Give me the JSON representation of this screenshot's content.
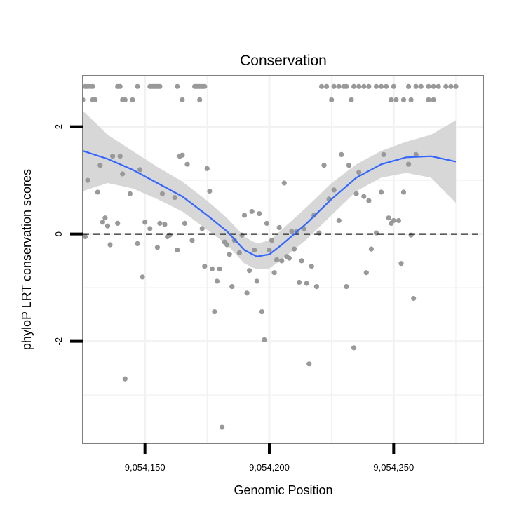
{
  "chart_data": {
    "type": "scatter",
    "title": "Conservation",
    "xlabel": "Genomic Position",
    "ylabel": "phyloP LRT conservation scores",
    "xlim": [
      9054125,
      9054286
    ],
    "ylim": [
      -3.9,
      2.95
    ],
    "x_ticks": [
      9054150,
      9054200,
      9054250
    ],
    "x_tick_labels": [
      "9,054,150",
      "9,054,200",
      "9,054,250"
    ],
    "y_ticks": [
      -2,
      0,
      2
    ],
    "y_tick_labels": [
      "-2",
      "0",
      "2"
    ],
    "x_minor_grid": [
      9054125,
      9054175,
      9054225,
      9054275
    ],
    "y_minor_grid": [
      -3,
      -1,
      1
    ],
    "reference_line_y": 0,
    "grid": true,
    "colors": {
      "points": "#999999",
      "smooth": "#3366FF",
      "band": "#D3D3D3",
      "panel_border": "#7F7F7F",
      "grid": "#F2F2F2"
    },
    "points": [
      [
        9054126,
        2.75
      ],
      [
        9054127,
        2.75
      ],
      [
        9054128,
        2.75
      ],
      [
        9054129,
        2.75
      ],
      [
        9054125,
        2.5
      ],
      [
        9054129,
        2.5
      ],
      [
        9054130,
        2.5
      ],
      [
        9054152,
        2.75
      ],
      [
        9054153,
        2.75
      ],
      [
        9054154,
        2.75
      ],
      [
        9054155,
        2.75
      ],
      [
        9054156,
        2.75
      ],
      [
        9054163,
        2.75
      ],
      [
        9054170,
        2.75
      ],
      [
        9054171,
        2.75
      ],
      [
        9054172,
        2.75
      ],
      [
        9054173,
        2.75
      ],
      [
        9054174,
        2.75
      ],
      [
        9054139,
        2.75
      ],
      [
        9054140,
        2.75
      ],
      [
        9054141,
        2.5
      ],
      [
        9054142,
        2.5
      ],
      [
        9054145,
        2.5
      ],
      [
        9054165,
        2.5
      ],
      [
        9054172,
        2.5
      ],
      [
        9054147,
        2.75
      ],
      [
        9054221,
        2.75
      ],
      [
        9054223,
        2.75
      ],
      [
        9054226,
        2.75
      ],
      [
        9054228,
        2.75
      ],
      [
        9054230,
        2.75
      ],
      [
        9054231,
        2.75
      ],
      [
        9054234,
        2.75
      ],
      [
        9054236,
        2.75
      ],
      [
        9054238,
        2.75
      ],
      [
        9054240,
        2.75
      ],
      [
        9054243,
        2.75
      ],
      [
        9054245,
        2.75
      ],
      [
        9054247,
        2.75
      ],
      [
        9054250,
        2.75
      ],
      [
        9054256,
        2.75
      ],
      [
        9054259,
        2.75
      ],
      [
        9054261,
        2.75
      ],
      [
        9054264,
        2.75
      ],
      [
        9054266,
        2.75
      ],
      [
        9054268,
        2.75
      ],
      [
        9054271,
        2.75
      ],
      [
        9054273,
        2.75
      ],
      [
        9054275,
        2.75
      ],
      [
        9054225,
        2.5
      ],
      [
        9054233,
        2.5
      ],
      [
        9054249,
        2.5
      ],
      [
        9054251,
        2.5
      ],
      [
        9054254,
        2.5
      ],
      [
        9054257,
        2.5
      ],
      [
        9054264,
        2.5
      ],
      [
        9054266,
        2.5
      ],
      [
        9054126,
        -0.05
      ],
      [
        9054127,
        1.0
      ],
      [
        9054131,
        0.78
      ],
      [
        9054132,
        1.28
      ],
      [
        9054133,
        0.22
      ],
      [
        9054134,
        0.3
      ],
      [
        9054135,
        0.15
      ],
      [
        9054136,
        -0.2
      ],
      [
        9054137,
        1.45
      ],
      [
        9054139,
        0.2
      ],
      [
        9054140,
        1.45
      ],
      [
        9054141,
        1.12
      ],
      [
        9054142,
        -2.7
      ],
      [
        9054144,
        0.75
      ],
      [
        9054147,
        -0.18
      ],
      [
        9054148,
        1.2
      ],
      [
        9054149,
        -0.8
      ],
      [
        9054150,
        0.22
      ],
      [
        9054152,
        0.1
      ],
      [
        9054155,
        -0.25
      ],
      [
        9054156,
        0.2
      ],
      [
        9054157,
        0.75
      ],
      [
        9054158,
        0.18
      ],
      [
        9054159,
        -0.05
      ],
      [
        9054160,
        -0.02
      ],
      [
        9054162,
        0.68
      ],
      [
        9054163,
        -0.3
      ],
      [
        9054164,
        1.45
      ],
      [
        9054165,
        1.47
      ],
      [
        9054166,
        0.2
      ],
      [
        9054167,
        1.3
      ],
      [
        9054169,
        -0.12
      ],
      [
        9054173,
        0.1
      ],
      [
        9054174,
        -0.6
      ],
      [
        9054175,
        1.22
      ],
      [
        9054176,
        0.8
      ],
      [
        9054177,
        -0.65
      ],
      [
        9054178,
        -1.45
      ],
      [
        9054179,
        -0.88
      ],
      [
        9054180,
        -0.65
      ],
      [
        9054181,
        -3.6
      ],
      [
        9054182,
        -0.15
      ],
      [
        9054183,
        -0.2
      ],
      [
        9054184,
        -0.38
      ],
      [
        9054185,
        -0.98
      ],
      [
        9054186,
        -0.12
      ],
      [
        9054188,
        -0.35
      ],
      [
        9054189,
        -0.02
      ],
      [
        9054190,
        0.35
      ],
      [
        9054191,
        -1.1
      ],
      [
        9054192,
        -0.68
      ],
      [
        9054193,
        0.42
      ],
      [
        9054194,
        -0.3
      ],
      [
        9054195,
        -0.88
      ],
      [
        9054196,
        0.38
      ],
      [
        9054197,
        -1.45
      ],
      [
        9054198,
        -1.97
      ],
      [
        9054199,
        0.2
      ],
      [
        9054200,
        -0.3
      ],
      [
        9054201,
        -0.12
      ],
      [
        9054202,
        -0.72
      ],
      [
        9054203,
        -0.48
      ],
      [
        9054204,
        0.12
      ],
      [
        9054205,
        -0.5
      ],
      [
        9054206,
        0.95
      ],
      [
        9054207,
        -0.42
      ],
      [
        9054208,
        -0.45
      ],
      [
        9054209,
        0.05
      ],
      [
        9054210,
        -0.28
      ],
      [
        9054211,
        0.05
      ],
      [
        9054212,
        -0.9
      ],
      [
        9054213,
        -0.5
      ],
      [
        9054214,
        0.1
      ],
      [
        9054215,
        -0.92
      ],
      [
        9054216,
        -2.42
      ],
      [
        9054217,
        -0.6
      ],
      [
        9054218,
        0.35
      ],
      [
        9054219,
        -0.98
      ],
      [
        9054220,
        0.02
      ],
      [
        9054222,
        1.28
      ],
      [
        9054224,
        0.65
      ],
      [
        9054226,
        0.82
      ],
      [
        9054228,
        0.25
      ],
      [
        9054229,
        1.48
      ],
      [
        9054231,
        -0.98
      ],
      [
        9054232,
        1.28
      ],
      [
        9054234,
        -2.12
      ],
      [
        9054235,
        0.75
      ],
      [
        9054236,
        1.15
      ],
      [
        9054238,
        0.7
      ],
      [
        9054239,
        -0.72
      ],
      [
        9054240,
        0.62
      ],
      [
        9054241,
        -0.28
      ],
      [
        9054243,
        0.02
      ],
      [
        9054245,
        0.78
      ],
      [
        9054246,
        1.48
      ],
      [
        9054248,
        0.3
      ],
      [
        9054249,
        0.2
      ],
      [
        9054250,
        0.25
      ],
      [
        9054252,
        0.25
      ],
      [
        9054253,
        -0.55
      ],
      [
        9054254,
        0.78
      ],
      [
        9054256,
        1.3
      ],
      [
        9054257,
        -0.02
      ],
      [
        9054258,
        -1.2
      ],
      [
        9054259,
        1.48
      ]
    ],
    "smooth": [
      [
        9054125,
        1.55
      ],
      [
        9054135,
        1.4
      ],
      [
        9054145,
        1.2
      ],
      [
        9054155,
        0.95
      ],
      [
        9054165,
        0.7
      ],
      [
        9054175,
        0.35
      ],
      [
        9054183,
        0.05
      ],
      [
        9054190,
        -0.3
      ],
      [
        9054195,
        -0.42
      ],
      [
        9054200,
        -0.38
      ],
      [
        9054205,
        -0.2
      ],
      [
        9054215,
        0.2
      ],
      [
        9054225,
        0.65
      ],
      [
        9054235,
        1.05
      ],
      [
        9054245,
        1.3
      ],
      [
        9054255,
        1.43
      ],
      [
        9054265,
        1.45
      ],
      [
        9054275,
        1.35
      ]
    ],
    "band_upper": [
      [
        9054125,
        2.3
      ],
      [
        9054135,
        1.85
      ],
      [
        9054145,
        1.55
      ],
      [
        9054155,
        1.25
      ],
      [
        9054165,
        0.98
      ],
      [
        9054175,
        0.62
      ],
      [
        9054183,
        0.3
      ],
      [
        9054190,
        -0.05
      ],
      [
        9054195,
        -0.18
      ],
      [
        9054200,
        -0.12
      ],
      [
        9054205,
        0.08
      ],
      [
        9054215,
        0.5
      ],
      [
        9054225,
        0.95
      ],
      [
        9054235,
        1.3
      ],
      [
        9054245,
        1.55
      ],
      [
        9054255,
        1.72
      ],
      [
        9054265,
        1.85
      ],
      [
        9054275,
        2.12
      ]
    ],
    "band_lower": [
      [
        9054125,
        0.8
      ],
      [
        9054135,
        0.95
      ],
      [
        9054145,
        0.85
      ],
      [
        9054155,
        0.65
      ],
      [
        9054165,
        0.42
      ],
      [
        9054175,
        0.08
      ],
      [
        9054183,
        -0.2
      ],
      [
        9054190,
        -0.55
      ],
      [
        9054195,
        -0.66
      ],
      [
        9054200,
        -0.64
      ],
      [
        9054205,
        -0.48
      ],
      [
        9054215,
        -0.1
      ],
      [
        9054225,
        0.35
      ],
      [
        9054235,
        0.8
      ],
      [
        9054245,
        1.05
      ],
      [
        9054255,
        1.14
      ],
      [
        9054265,
        1.05
      ],
      [
        9054275,
        0.58
      ]
    ]
  }
}
